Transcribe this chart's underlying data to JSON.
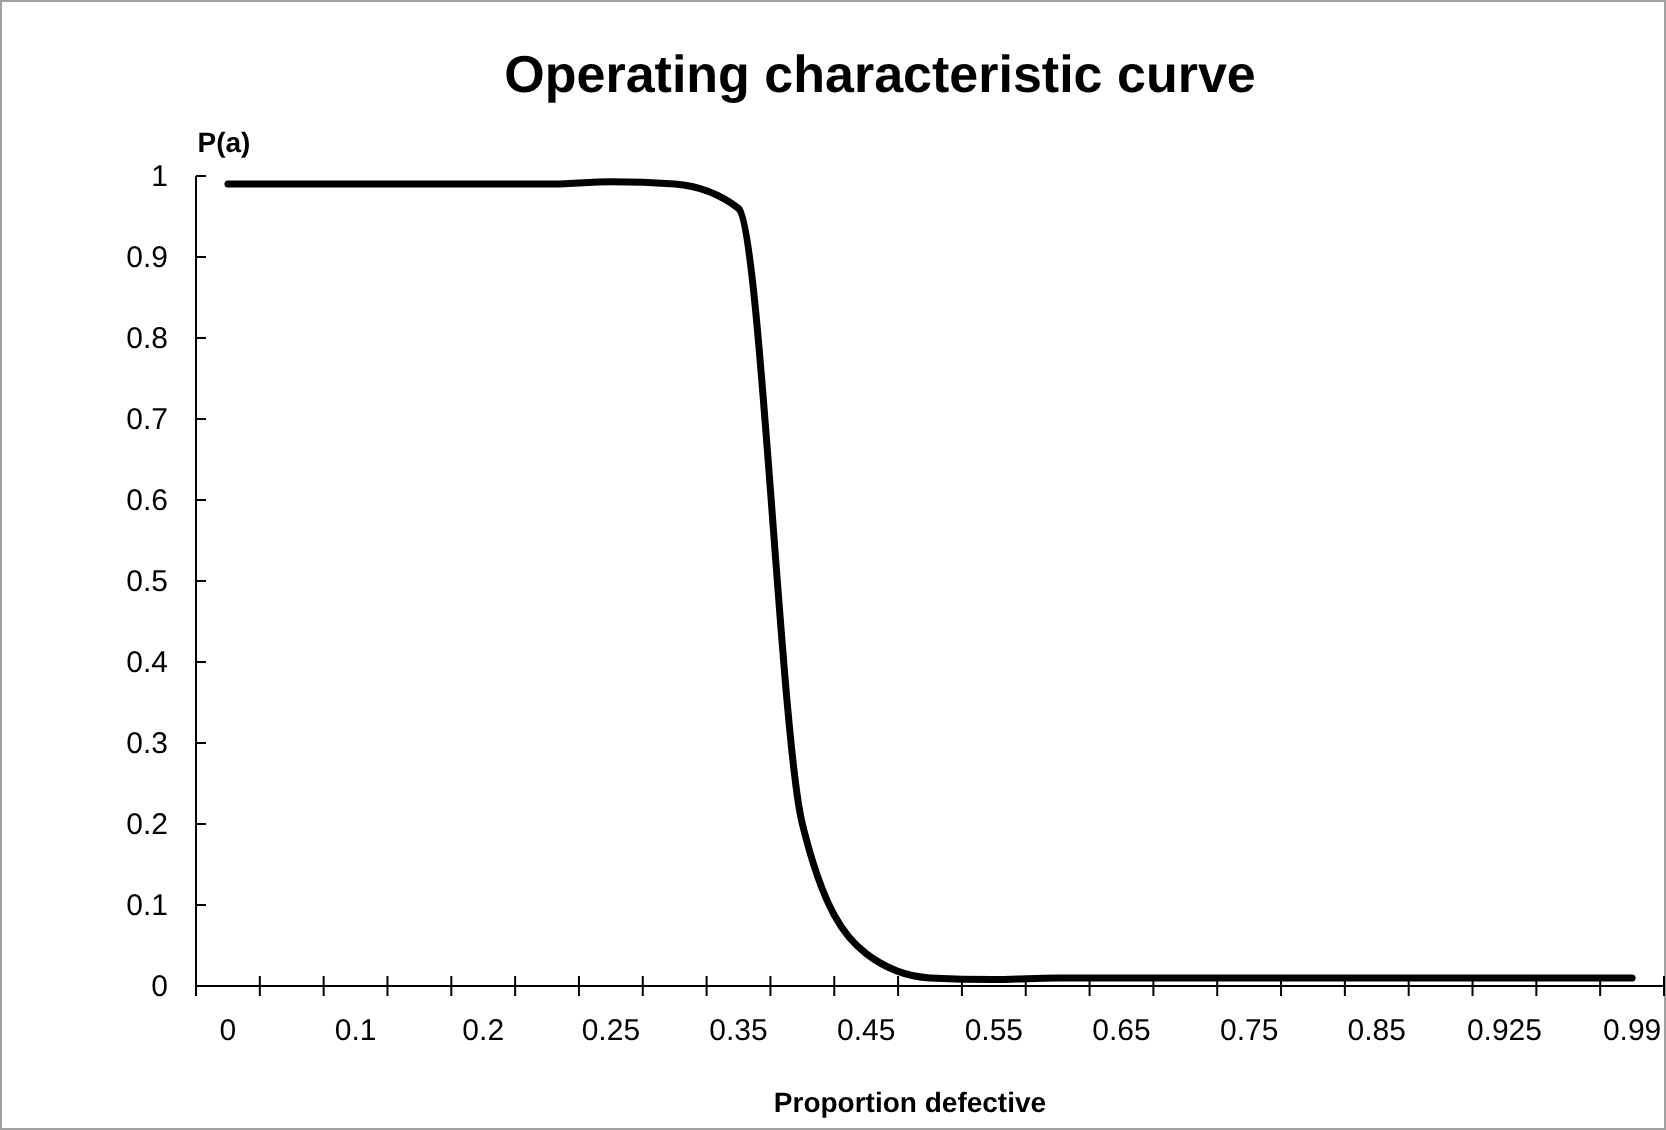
{
  "chart_data": {
    "type": "line",
    "title": "Operating characteristic curve",
    "xlabel": "Proportion defective",
    "ylabel": "P(a)",
    "categories": [
      "0",
      null,
      "0.1",
      null,
      "0.2",
      null,
      "0.25",
      null,
      "0.35",
      null,
      "0.45",
      null,
      "0.55",
      null,
      "0.65",
      null,
      "0.75",
      null,
      "0.85",
      null,
      "0.925",
      null,
      "0.99"
    ],
    "series": [
      {
        "color": "#000000",
        "values": [
          0.99,
          0.99,
          0.99,
          0.99,
          0.99,
          0.99,
          0.993,
          0.99,
          0.96,
          0.2,
          0.04,
          0.01,
          0.008,
          0.01,
          0.01,
          0.01,
          0.01,
          0.01,
          0.01,
          0.01,
          0.01,
          0.01,
          0.01
        ]
      }
    ],
    "ylim": [
      0,
      1
    ],
    "yticks": [
      0,
      0.1,
      0.2,
      0.3,
      0.4,
      0.5,
      0.6,
      0.7,
      0.8,
      0.9,
      1
    ],
    "grid": false,
    "marker": "none",
    "line_style": "solid"
  }
}
